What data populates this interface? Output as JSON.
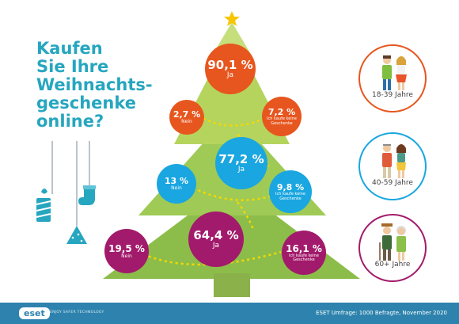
{
  "title": {
    "lines": [
      "Kaufen",
      "Sie Ihre",
      "Weihnachts-",
      "geschenke",
      "online?"
    ]
  },
  "groups": [
    {
      "age_label": "18-39 Jahre",
      "color": "#e7561e",
      "ja": {
        "value": "90,1 %",
        "label": "Ja"
      },
      "nein": {
        "value": "2,7 %",
        "label": "Nein"
      },
      "keine": {
        "value": "7,2 %",
        "label": "Ich kaufe keine Geschenke"
      }
    },
    {
      "age_label": "40-59 Jahre",
      "color": "#1aa6e0",
      "ja": {
        "value": "77,2 %",
        "label": "Ja"
      },
      "nein": {
        "value": "13 %",
        "label": "Nein"
      },
      "keine": {
        "value": "9,8 %",
        "label": "Ich kaufe keine Geschenke"
      }
    },
    {
      "age_label": "60+ Jahre",
      "color": "#a21a6b",
      "ja": {
        "value": "64,4 %",
        "label": "Ja"
      },
      "nein": {
        "value": "19,5 %",
        "label": "Nein"
      },
      "keine": {
        "value": "16,1 %",
        "label": "Ich kaufe keine Geschenke"
      }
    }
  ],
  "footer": {
    "logo": "eset",
    "slogan": "ENJOY SAFER TECHNOLOGY",
    "source": "ESET Umfrage: 1000 Befragte, November 2020"
  },
  "colors": {
    "tree_light": "#b5d45e",
    "tree_dark": "#8cbd4a",
    "trunk": "#8bb14a",
    "star": "#f7c600",
    "garland": "#f5d800",
    "teal": "#26a6bf",
    "footer": "#2d83ad"
  }
}
